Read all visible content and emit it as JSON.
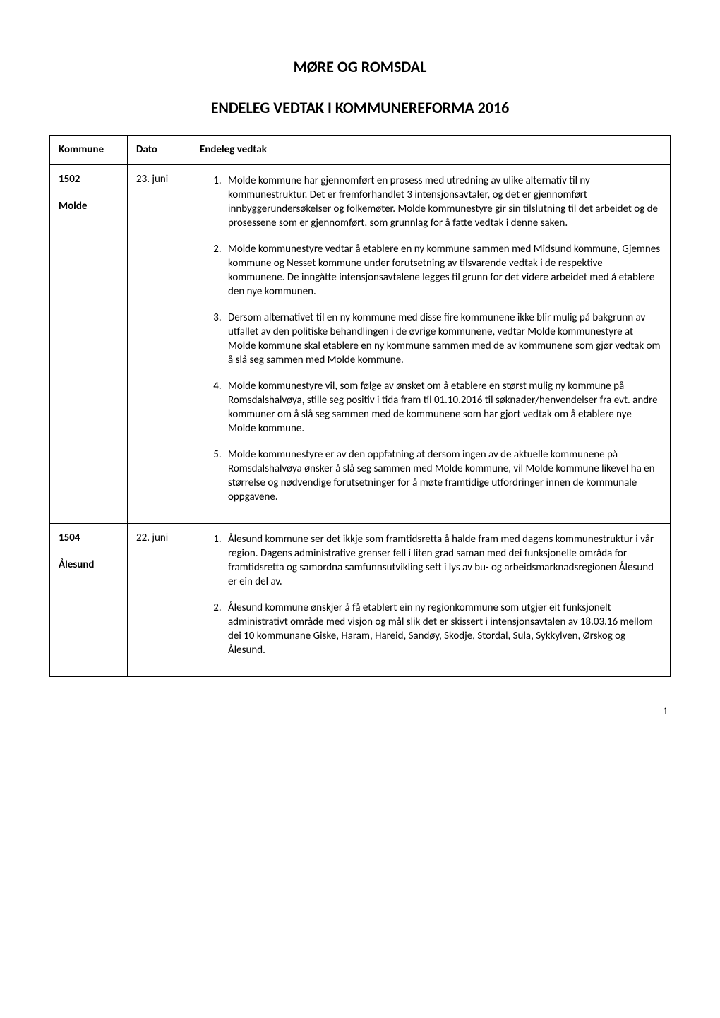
{
  "page": {
    "title": "MØRE OG ROMSDAL",
    "subtitle": "ENDELEG VEDTAK I KOMMUNEREFORMA 2016",
    "page_number": "1"
  },
  "table": {
    "headers": {
      "kommune": "Kommune",
      "dato": "Dato",
      "vedtak": "Endeleg vedtak"
    },
    "rows": [
      {
        "kommune_nr": "1502",
        "kommune_name": "Molde",
        "dato": "23. juni",
        "items": [
          "Molde kommune har gjennomført en prosess med utredning av ulike alternativ til ny kommunestruktur. Det er fremforhandlet 3 intensjonsavtaler, og det er gjennomført innbyggerundersøkelser og folkemøter. Molde kommunestyre gir sin tilslutning til det arbeidet og de prosessene som er gjennomført, som grunnlag for å fatte vedtak i denne saken.",
          "Molde kommunestyre vedtar å etablere en ny kommune sammen med Midsund kommune, Gjemnes kommune og Nesset kommune under forutsetning av tilsvarende vedtak i de respektive kommunene. De inngåtte intensjonsavtalene legges til grunn for det videre arbeidet med å etablere den nye kommunen.",
          "Dersom alternativet til en ny kommune med disse fire kommunene ikke blir mulig på bakgrunn av utfallet av den politiske behandlingen i de øvrige kommunene, vedtar Molde kommunestyre at Molde kommune skal etablere en ny kommune sammen med de av kommunene som gjør vedtak om å slå seg sammen med Molde kommune.",
          "Molde kommunestyre vil, som følge av ønsket om å etablere en størst mulig ny kommune på Romsdalshalvøya, stille seg positiv i tida fram til 01.10.2016 til søknader/henvendelser fra evt. andre kommuner om å slå seg sammen med de kommunene som har gjort vedtak om å etablere nye Molde kommune.",
          "Molde kommunestyre er av den oppfatning at dersom ingen av de aktuelle kommunene på Romsdalshalvøya ønsker å slå seg sammen med Molde kommune, vil Molde kommune likevel ha en størrelse og nødvendige forutsetninger for å møte framtidige utfordringer innen de kommunale oppgavene."
        ]
      },
      {
        "kommune_nr": "1504",
        "kommune_name": "Ålesund",
        "dato": "22. juni",
        "items": [
          "Ålesund kommune ser det ikkje som framtidsretta å halde fram med dagens kommunestruktur i vår region. Dagens administrative grenser fell i liten grad saman med dei funksjonelle områda for framtidsretta og samordna samfunnsutvikling sett i lys av bu- og arbeidsmarknadsregionen Ålesund er ein del av.",
          "Ålesund kommune ønskjer å få etablert ein ny regionkommune som utgjer eit funksjonelt administrativt område med visjon og mål slik det er skissert i intensjonsavtalen av 18.03.16 mellom dei 10 kommunane Giske, Haram, Hareid, Sandøy, Skodje, Stordal, Sula, Sykkylven, Ørskog og Ålesund."
        ]
      }
    ]
  }
}
